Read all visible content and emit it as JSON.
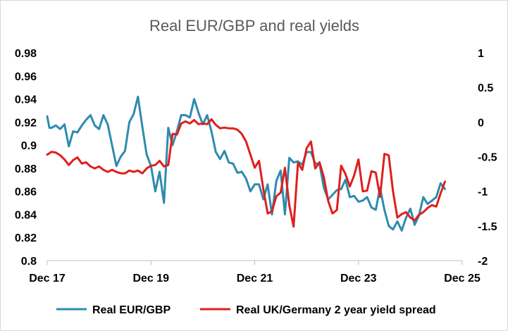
{
  "chart_data": {
    "type": "line",
    "title": "Real EUR/GBP and real yields",
    "x_tick_labels": [
      "Dec 17",
      "Dec 19",
      "Dec 21",
      "Dec 23",
      "Dec 25"
    ],
    "y_left_ticks": [
      "0.98",
      "0.96",
      "0.94",
      "0.92",
      "0.9",
      "0.88",
      "0.86",
      "0.84",
      "0.82",
      "0.8"
    ],
    "y_right_ticks": [
      "1",
      "0.5",
      "0",
      "-0.5",
      "-1",
      "-1.5",
      "-2"
    ],
    "ylim_left": [
      0.8,
      0.98
    ],
    "ylim_right": [
      -2,
      1
    ],
    "x_range_months": [
      0,
      96
    ],
    "legend_position": "bottom",
    "grid": false,
    "series": [
      {
        "name": "Real EUR/GBP",
        "axis": "left",
        "color": "#2E8BAD",
        "points": [
          [
            0,
            0.925
          ],
          [
            0.5,
            0.915
          ],
          [
            1,
            0.915
          ],
          [
            2,
            0.917
          ],
          [
            3,
            0.914
          ],
          [
            4,
            0.918
          ],
          [
            5,
            0.899
          ],
          [
            6,
            0.912
          ],
          [
            7,
            0.911
          ],
          [
            8,
            0.917
          ],
          [
            9,
            0.922
          ],
          [
            10,
            0.926
          ],
          [
            11,
            0.917
          ],
          [
            12,
            0.914
          ],
          [
            13,
            0.926
          ],
          [
            14,
            0.918
          ],
          [
            15,
            0.9
          ],
          [
            16,
            0.882
          ],
          [
            17,
            0.89
          ],
          [
            18,
            0.895
          ],
          [
            19,
            0.92
          ],
          [
            20,
            0.927
          ],
          [
            21,
            0.942
          ],
          [
            22,
            0.916
          ],
          [
            23,
            0.892
          ],
          [
            24,
            0.882
          ],
          [
            25,
            0.86
          ],
          [
            26,
            0.877
          ],
          [
            27,
            0.85
          ],
          [
            28,
            0.915
          ],
          [
            29,
            0.9
          ],
          [
            30,
            0.912
          ],
          [
            31,
            0.926
          ],
          [
            32,
            0.926
          ],
          [
            33,
            0.924
          ],
          [
            34,
            0.94
          ],
          [
            35,
            0.928
          ],
          [
            36,
            0.918
          ],
          [
            37,
            0.926
          ],
          [
            38,
            0.912
          ],
          [
            39,
            0.894
          ],
          [
            40,
            0.888
          ],
          [
            41,
            0.895
          ],
          [
            42,
            0.885
          ],
          [
            43,
            0.884
          ],
          [
            44,
            0.876
          ],
          [
            45,
            0.877
          ],
          [
            46,
            0.871
          ],
          [
            47,
            0.86
          ],
          [
            48,
            0.866
          ],
          [
            49,
            0.866
          ],
          [
            50,
            0.853
          ],
          [
            51,
            0.866
          ],
          [
            52,
            0.84
          ],
          [
            53,
            0.869
          ],
          [
            54,
            0.878
          ],
          [
            55,
            0.84
          ],
          [
            56,
            0.889
          ],
          [
            57,
            0.885
          ],
          [
            58,
            0.886
          ],
          [
            59,
            0.883
          ],
          [
            60,
            0.894
          ],
          [
            61,
            0.894
          ],
          [
            62,
            0.884
          ],
          [
            63,
            0.884
          ],
          [
            64,
            0.863
          ],
          [
            65,
            0.853
          ],
          [
            66,
            0.857
          ],
          [
            67,
            0.861
          ],
          [
            68,
            0.862
          ],
          [
            69,
            0.87
          ],
          [
            70,
            0.855
          ],
          [
            71,
            0.856
          ],
          [
            72,
            0.851
          ],
          [
            73,
            0.852
          ],
          [
            74,
            0.855
          ],
          [
            75,
            0.846
          ],
          [
            76,
            0.844
          ],
          [
            77,
            0.863
          ],
          [
            78,
            0.844
          ],
          [
            79,
            0.83
          ],
          [
            80,
            0.827
          ],
          [
            81,
            0.834
          ],
          [
            82,
            0.826
          ],
          [
            83,
            0.837
          ],
          [
            84,
            0.845
          ],
          [
            85,
            0.831
          ],
          [
            86,
            0.839
          ],
          [
            87,
            0.855
          ],
          [
            88,
            0.849
          ],
          [
            89,
            0.852
          ],
          [
            90,
            0.855
          ],
          [
            91,
            0.867
          ],
          [
            92,
            0.862
          ]
        ]
      },
      {
        "name": "Real UK/Germany 2 year yield spread",
        "axis": "right",
        "color": "#E01E1E",
        "points": [
          [
            0,
            -0.47
          ],
          [
            1,
            -0.43
          ],
          [
            2,
            -0.44
          ],
          [
            3,
            -0.48
          ],
          [
            4,
            -0.54
          ],
          [
            5,
            -0.62
          ],
          [
            6,
            -0.55
          ],
          [
            7,
            -0.51
          ],
          [
            8,
            -0.6
          ],
          [
            9,
            -0.58
          ],
          [
            10,
            -0.64
          ],
          [
            11,
            -0.67
          ],
          [
            12,
            -0.64
          ],
          [
            13,
            -0.69
          ],
          [
            14,
            -0.72
          ],
          [
            15,
            -0.69
          ],
          [
            16,
            -0.72
          ],
          [
            17,
            -0.74
          ],
          [
            18,
            -0.74
          ],
          [
            19,
            -0.7
          ],
          [
            20,
            -0.72
          ],
          [
            21,
            -0.7
          ],
          [
            22,
            -0.74
          ],
          [
            23,
            -0.67
          ],
          [
            24,
            -0.63
          ],
          [
            25,
            -0.62
          ],
          [
            26,
            -0.56
          ],
          [
            27,
            -0.64
          ],
          [
            28,
            -0.62
          ],
          [
            29,
            -0.17
          ],
          [
            30,
            -0.18
          ],
          [
            31,
            -0.02
          ],
          [
            32,
            0.01
          ],
          [
            33,
            -0.02
          ],
          [
            34,
            0.03
          ],
          [
            35,
            -0.03
          ],
          [
            36,
            -0.02
          ],
          [
            37,
            -0.03
          ],
          [
            38,
            0.04
          ],
          [
            39,
            -0.04
          ],
          [
            40,
            -0.09
          ],
          [
            41,
            -0.08
          ],
          [
            42,
            -0.09
          ],
          [
            43,
            -0.09
          ],
          [
            44,
            -0.11
          ],
          [
            45,
            -0.17
          ],
          [
            46,
            -0.28
          ],
          [
            47,
            -0.47
          ],
          [
            48,
            -0.66
          ],
          [
            49,
            -0.56
          ],
          [
            50,
            -0.97
          ],
          [
            51,
            -1.32
          ],
          [
            52,
            -1.29
          ],
          [
            53,
            -1.07
          ],
          [
            54,
            -1.02
          ],
          [
            55,
            -0.66
          ],
          [
            56,
            -1.2
          ],
          [
            57,
            -1.51
          ],
          [
            58,
            -0.59
          ],
          [
            59,
            -0.69
          ],
          [
            60,
            -0.38
          ],
          [
            61,
            -0.28
          ],
          [
            62,
            -0.67
          ],
          [
            63,
            -0.58
          ],
          [
            64,
            -0.8
          ],
          [
            65,
            -1.14
          ],
          [
            66,
            -1.32
          ],
          [
            67,
            -1.27
          ],
          [
            68,
            -0.63
          ],
          [
            69,
            -0.75
          ],
          [
            70,
            -0.93
          ],
          [
            71,
            -0.77
          ],
          [
            72,
            -0.54
          ],
          [
            73,
            -1.0
          ],
          [
            74,
            -0.99
          ],
          [
            75,
            -0.71
          ],
          [
            76,
            -0.73
          ],
          [
            77,
            -1.08
          ],
          [
            78,
            -0.46
          ],
          [
            79,
            -0.48
          ],
          [
            80,
            -1.0
          ],
          [
            81,
            -1.38
          ],
          [
            82,
            -1.33
          ],
          [
            83,
            -1.3
          ],
          [
            84,
            -1.38
          ],
          [
            85,
            -1.42
          ],
          [
            86,
            -1.34
          ],
          [
            87,
            -1.3
          ],
          [
            88,
            -1.24
          ],
          [
            89,
            -1.2
          ],
          [
            90,
            -1.22
          ],
          [
            91,
            -1.03
          ],
          [
            92,
            -0.86
          ]
        ]
      }
    ]
  }
}
